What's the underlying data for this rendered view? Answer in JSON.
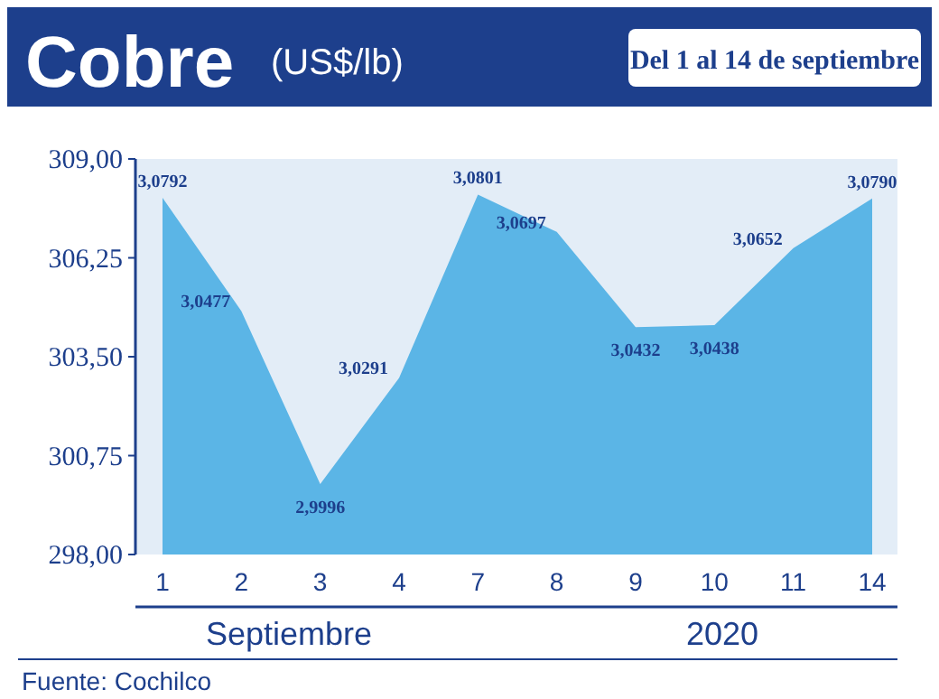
{
  "chart_data": {
    "type": "area",
    "title": "Cobre",
    "subtitle": "(US$/lb)",
    "annotations": [
      "Del 1 al 14 de septiembre",
      "2020",
      "Fuente: Cochilco"
    ],
    "xlabel": "Septiembre",
    "categories": [
      "1",
      "2",
      "3",
      "4",
      "7",
      "8",
      "9",
      "10",
      "11",
      "14"
    ],
    "values": [
      307.92,
      304.77,
      299.96,
      302.91,
      308.01,
      306.97,
      304.32,
      304.38,
      306.52,
      307.9
    ],
    "value_labels": [
      "3,0792",
      "3,0477",
      "2,9996",
      "3,0291",
      "3,0801",
      "3,0697",
      "3,0432",
      "3,0438",
      "3,0652",
      "3,0790"
    ],
    "color": "#5bb5e6",
    "ylim": [
      298,
      309
    ],
    "yticks": [
      {
        "value": 298,
        "label": "298,00"
      },
      {
        "value": 300.75,
        "label": "300,75"
      },
      {
        "value": 303.5,
        "label": "303,50"
      },
      {
        "value": 306.25,
        "label": "306,25"
      },
      {
        "value": 309,
        "label": "309,00"
      }
    ],
    "grid": false
  }
}
